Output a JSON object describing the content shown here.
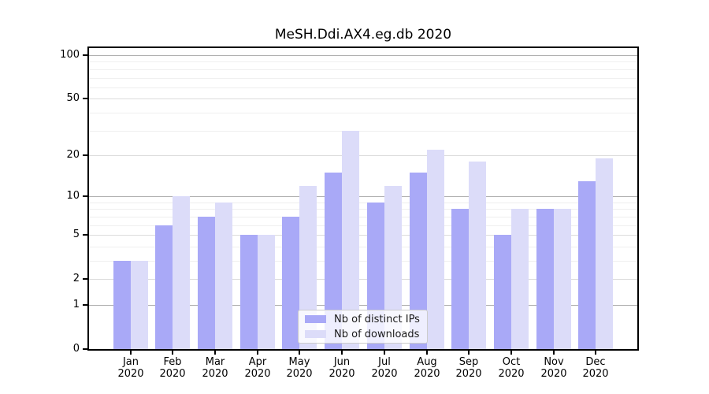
{
  "title": "MeSH.Ddi.AX4.eg.db 2020",
  "chart_data": {
    "type": "bar",
    "categories": [
      "Jan 2020",
      "Feb 2020",
      "Mar 2020",
      "Apr 2020",
      "May 2020",
      "Jun 2020",
      "Jul 2020",
      "Aug 2020",
      "Sep 2020",
      "Oct 2020",
      "Nov 2020",
      "Dec 2020"
    ],
    "months": [
      "Jan",
      "Feb",
      "Mar",
      "Apr",
      "May",
      "Jun",
      "Jul",
      "Aug",
      "Sep",
      "Oct",
      "Nov",
      "Dec"
    ],
    "year": "2020",
    "series": [
      {
        "name": "Nb of distinct IPs",
        "color": "#a9a9f7",
        "values": [
          3,
          6,
          7,
          5,
          7,
          15,
          9,
          15,
          8,
          5,
          8,
          13
        ]
      },
      {
        "name": "Nb of downloads",
        "color": "#dcdcf9",
        "values": [
          3,
          10,
          9,
          5,
          12,
          30,
          12,
          22,
          18,
          8,
          8,
          19
        ]
      }
    ],
    "yscale": "log1p",
    "ylim": [
      0,
      112
    ],
    "y_major_ticks": [
      0,
      1,
      2,
      5,
      10,
      20,
      50,
      100
    ],
    "y_tick_labels": [
      "0",
      "1",
      "2",
      "5",
      "10",
      "20",
      "50",
      "100"
    ],
    "y_minor_ticks": [
      3,
      4,
      6,
      7,
      8,
      9,
      30,
      40,
      60,
      70,
      80,
      90
    ],
    "grid": true,
    "legend_position": "lower center",
    "colors": {
      "decade_gridline": "#b0b0b0",
      "major_gridline": "#dcdcdc",
      "minor_gridline": "#efefef",
      "axis": "#000000",
      "text": "#000000",
      "legend_border": "#cccccc",
      "legend_background": "rgba(255,255,255,0.8)"
    }
  }
}
